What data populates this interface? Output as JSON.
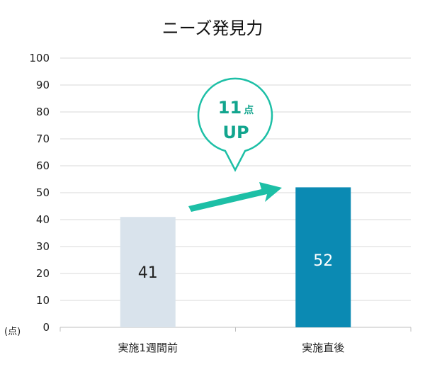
{
  "chart_data": {
    "type": "bar",
    "title": "ニーズ発見力",
    "categories": [
      "実施1週間前",
      "実施直後"
    ],
    "values": [
      41,
      52
    ],
    "ylim": [
      0,
      100
    ],
    "yticks": [
      0,
      10,
      20,
      30,
      40,
      50,
      60,
      70,
      80,
      90,
      100
    ],
    "unit_label": "(点)",
    "grid": true,
    "bar_colors": [
      "#d9e3ec",
      "#0b8ab3"
    ],
    "label_colors": [
      "#222222",
      "#ffffff"
    ],
    "annotation": {
      "number": "11",
      "unit": "点",
      "text": "UP",
      "color": "#1dbfa6"
    }
  }
}
